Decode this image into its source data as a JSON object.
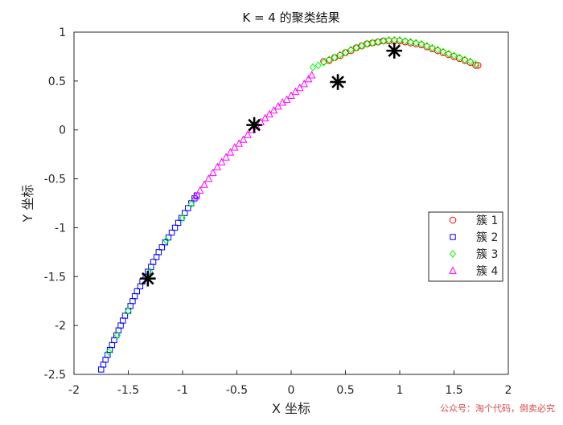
{
  "chart_data": {
    "type": "scatter",
    "title": "K = 4 的聚类结果",
    "xlabel": "X 坐标",
    "ylabel": "Y 坐标",
    "xlim": [
      -2,
      2
    ],
    "ylim": [
      -2.5,
      1
    ],
    "xticks": [
      -2,
      -1.5,
      -1,
      -0.5,
      0,
      0.5,
      1,
      1.5,
      2
    ],
    "yticks": [
      1,
      0.5,
      0,
      -0.5,
      -1,
      -1.5,
      -2,
      -2.5
    ],
    "xtick_labels": [
      "-2",
      "-1.5",
      "-1",
      "-0.5",
      "0",
      "0.5",
      "1",
      "1.5",
      "2"
    ],
    "ytick_labels": [
      "1",
      "0.5",
      "0",
      "-0.5",
      "-1",
      "-1.5",
      "-2",
      "-2.5"
    ],
    "grid": false,
    "legend_position": "right",
    "series": [
      {
        "name": "簇 1",
        "marker": "circle",
        "color": "#ff0000",
        "points": [
          [
            0.3,
            0.7
          ],
          [
            0.35,
            0.71
          ],
          [
            0.4,
            0.74
          ],
          [
            0.45,
            0.76
          ],
          [
            0.5,
            0.79
          ],
          [
            0.55,
            0.81
          ],
          [
            0.6,
            0.84
          ],
          [
            0.65,
            0.86
          ],
          [
            0.7,
            0.88
          ],
          [
            0.75,
            0.89
          ],
          [
            0.8,
            0.9
          ],
          [
            0.85,
            0.91
          ],
          [
            0.9,
            0.91
          ],
          [
            0.95,
            0.91
          ],
          [
            1.0,
            0.91
          ],
          [
            1.05,
            0.9
          ],
          [
            1.1,
            0.89
          ],
          [
            1.15,
            0.88
          ],
          [
            1.2,
            0.87
          ],
          [
            1.25,
            0.85
          ],
          [
            1.3,
            0.83
          ],
          [
            1.35,
            0.81
          ],
          [
            1.4,
            0.79
          ],
          [
            1.45,
            0.77
          ],
          [
            1.5,
            0.75
          ],
          [
            1.55,
            0.73
          ],
          [
            1.6,
            0.71
          ],
          [
            1.65,
            0.69
          ],
          [
            1.7,
            0.66
          ],
          [
            1.72,
            0.66
          ]
        ]
      },
      {
        "name": "簇 2",
        "marker": "square",
        "color": "#0000ff",
        "points": [
          [
            -1.75,
            -2.45
          ],
          [
            -1.73,
            -2.4
          ],
          [
            -1.71,
            -2.35
          ],
          [
            -1.69,
            -2.3
          ],
          [
            -1.67,
            -2.25
          ],
          [
            -1.65,
            -2.2
          ],
          [
            -1.63,
            -2.15
          ],
          [
            -1.61,
            -2.1
          ],
          [
            -1.59,
            -2.05
          ],
          [
            -1.57,
            -2.0
          ],
          [
            -1.55,
            -1.95
          ],
          [
            -1.53,
            -1.9
          ],
          [
            -1.5,
            -1.85
          ],
          [
            -1.48,
            -1.8
          ],
          [
            -1.46,
            -1.75
          ],
          [
            -1.44,
            -1.7
          ],
          [
            -1.42,
            -1.65
          ],
          [
            -1.39,
            -1.6
          ],
          [
            -1.37,
            -1.55
          ],
          [
            -1.34,
            -1.5
          ],
          [
            -1.32,
            -1.45
          ],
          [
            -1.29,
            -1.4
          ],
          [
            -1.27,
            -1.35
          ],
          [
            -1.24,
            -1.3
          ],
          [
            -1.22,
            -1.25
          ],
          [
            -1.19,
            -1.2
          ],
          [
            -1.16,
            -1.15
          ],
          [
            -1.13,
            -1.1
          ],
          [
            -1.1,
            -1.05
          ],
          [
            -1.07,
            -1.0
          ],
          [
            -1.04,
            -0.95
          ],
          [
            -1.01,
            -0.9
          ],
          [
            -0.98,
            -0.85
          ],
          [
            -0.95,
            -0.8
          ],
          [
            -0.92,
            -0.75
          ],
          [
            -0.89,
            -0.7
          ],
          [
            -0.87,
            -0.67
          ]
        ]
      },
      {
        "name": "簇 3",
        "marker": "diamond",
        "color": "#00ff00",
        "points": [
          [
            -1.68,
            -2.27
          ],
          [
            -1.6,
            -2.1
          ],
          [
            -1.5,
            -1.85
          ],
          [
            -1.3,
            -1.45
          ],
          [
            -1.15,
            -1.13
          ],
          [
            -1.0,
            -0.9
          ],
          [
            -0.92,
            -0.76
          ],
          [
            0.2,
            0.64
          ],
          [
            0.25,
            0.66
          ],
          [
            0.3,
            0.69
          ],
          [
            0.35,
            0.72
          ],
          [
            0.4,
            0.74
          ],
          [
            0.45,
            0.77
          ],
          [
            0.5,
            0.79
          ],
          [
            0.55,
            0.82
          ],
          [
            0.6,
            0.84
          ],
          [
            0.65,
            0.86
          ],
          [
            0.7,
            0.88
          ],
          [
            0.75,
            0.89
          ],
          [
            0.8,
            0.9
          ],
          [
            0.85,
            0.91
          ],
          [
            0.9,
            0.92
          ],
          [
            0.95,
            0.92
          ],
          [
            1.0,
            0.92
          ],
          [
            1.05,
            0.91
          ],
          [
            1.1,
            0.9
          ],
          [
            1.15,
            0.89
          ],
          [
            1.2,
            0.88
          ],
          [
            1.25,
            0.86
          ],
          [
            1.3,
            0.84
          ],
          [
            1.35,
            0.82
          ],
          [
            1.4,
            0.8
          ],
          [
            1.45,
            0.78
          ],
          [
            1.5,
            0.76
          ],
          [
            1.55,
            0.74
          ],
          [
            1.6,
            0.72
          ],
          [
            1.65,
            0.7
          ],
          [
            1.7,
            0.67
          ]
        ]
      },
      {
        "name": "簇 4",
        "marker": "triangle",
        "color": "#ff00ff",
        "points": [
          [
            -0.88,
            -0.68
          ],
          [
            -0.84,
            -0.62
          ],
          [
            -0.8,
            -0.56
          ],
          [
            -0.76,
            -0.5
          ],
          [
            -0.72,
            -0.44
          ],
          [
            -0.68,
            -0.38
          ],
          [
            -0.64,
            -0.33
          ],
          [
            -0.6,
            -0.28
          ],
          [
            -0.56,
            -0.23
          ],
          [
            -0.52,
            -0.18
          ],
          [
            -0.48,
            -0.14
          ],
          [
            -0.44,
            -0.1
          ],
          [
            -0.4,
            -0.05
          ],
          [
            -0.36,
            0.0
          ],
          [
            -0.32,
            0.04
          ],
          [
            -0.28,
            0.08
          ],
          [
            -0.24,
            0.12
          ],
          [
            -0.2,
            0.16
          ],
          [
            -0.16,
            0.2
          ],
          [
            -0.12,
            0.24
          ],
          [
            -0.08,
            0.28
          ],
          [
            -0.04,
            0.31
          ],
          [
            0.0,
            0.35
          ],
          [
            0.04,
            0.39
          ],
          [
            0.08,
            0.43
          ],
          [
            0.12,
            0.47
          ],
          [
            0.16,
            0.52
          ],
          [
            0.19,
            0.56
          ]
        ]
      }
    ],
    "centroids": {
      "marker": "asterisk",
      "color": "#000000",
      "points": [
        [
          0.95,
          0.81
        ],
        [
          -1.32,
          -1.52
        ],
        [
          0.43,
          0.49
        ],
        [
          -0.34,
          0.05
        ]
      ]
    },
    "legend": [
      {
        "label": "簇 1",
        "marker": "circle",
        "color": "#ff0000"
      },
      {
        "label": "簇 2",
        "marker": "square",
        "color": "#0000ff"
      },
      {
        "label": "簇 3",
        "marker": "diamond",
        "color": "#00ff00"
      },
      {
        "label": "簇 4",
        "marker": "triangle",
        "color": "#ff00ff"
      }
    ]
  },
  "watermark": {
    "text": "公众号：淘个代码，倒卖必究",
    "color": "#d94a4a"
  }
}
